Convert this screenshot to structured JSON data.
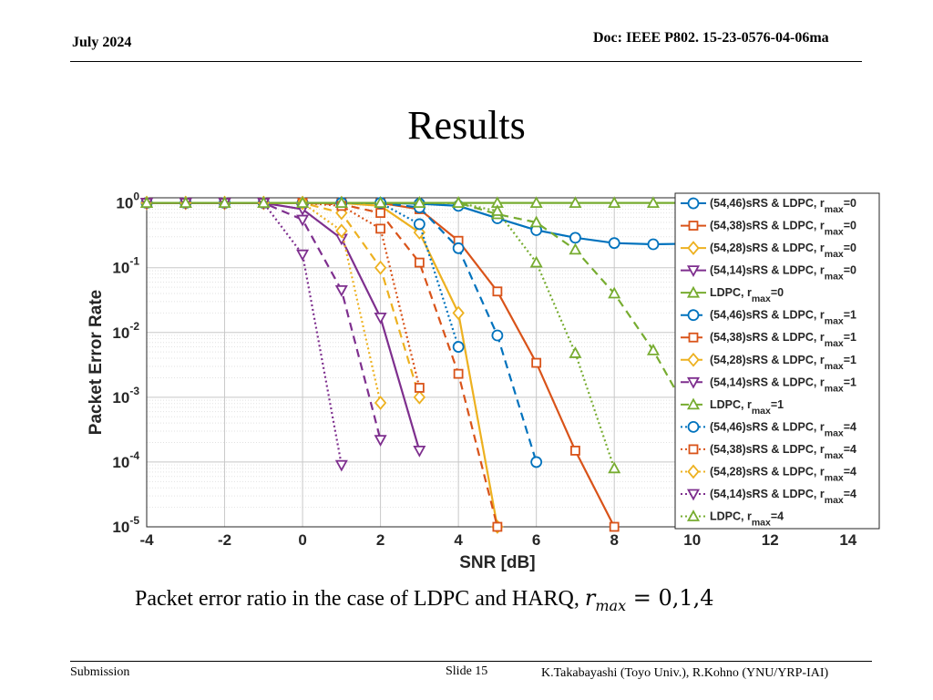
{
  "header": {
    "date": "July 2024",
    "doc": "Doc: IEEE P802. 15-23-0576-04-06ma"
  },
  "slide_title": "Results",
  "caption": {
    "text": "Packet error ratio in the case of LDPC and HARQ, ",
    "math_symbol": "r",
    "math_subscript": "max",
    "math_rest": " = 0,1,4"
  },
  "footer": {
    "submission": "Submission",
    "slide": "Slide 15",
    "authors": "K.Takabayashi (Toyo Univ.), R.Kohno (YNU/YRP-IAI)"
  },
  "chart_data": {
    "type": "line",
    "xlabel": "SNR [dB]",
    "ylabel": "Packet Error Rate",
    "xlim": [
      -4,
      14.8
    ],
    "ylim": [
      1e-05,
      1.2
    ],
    "yscale": "log",
    "grid": true,
    "legend_position": "right",
    "x_ticks": [
      -4,
      -2,
      0,
      2,
      4,
      6,
      8,
      10,
      12,
      14
    ],
    "y_ticks": [
      {
        "base": "10",
        "exp": "0"
      },
      {
        "base": "10",
        "exp": "-1"
      },
      {
        "base": "10",
        "exp": "-2"
      },
      {
        "base": "10",
        "exp": "-3"
      },
      {
        "base": "10",
        "exp": "-4"
      },
      {
        "base": "10",
        "exp": "-5"
      }
    ],
    "series": [
      {
        "name": "(54,46)sRS & LDPC, r",
        "sub": "max",
        "suffix": "=0",
        "color": "#0072BD",
        "dash": "solid",
        "marker": "circle",
        "filled": false,
        "x": [
          -4,
          -3,
          -2,
          -1,
          0,
          1,
          2,
          3,
          4,
          5,
          6,
          7,
          8,
          9,
          10
        ],
        "y": [
          1,
          1,
          1,
          1,
          1,
          1,
          1,
          0.97,
          0.9,
          0.58,
          0.38,
          0.29,
          0.24,
          0.23,
          0.235
        ]
      },
      {
        "name": "(54,38)sRS & LDPC, r",
        "sub": "max",
        "suffix": "=0",
        "color": "#D95319",
        "dash": "solid",
        "marker": "square",
        "filled": false,
        "x": [
          -4,
          -3,
          -2,
          -1,
          0,
          1,
          2,
          3,
          4,
          5,
          6,
          7,
          8
        ],
        "y": [
          1,
          1,
          1,
          1,
          1,
          1,
          1,
          0.8,
          0.26,
          0.043,
          0.0034,
          0.00015,
          1e-05
        ]
      },
      {
        "name": "(54,28)sRS & LDPC, r",
        "sub": "max",
        "suffix": "=0",
        "color": "#EDB120",
        "dash": "solid",
        "marker": "diamond",
        "filled": false,
        "x": [
          -4,
          -3,
          -2,
          -1,
          0,
          1,
          2,
          3,
          4,
          5
        ],
        "y": [
          1,
          1,
          1,
          1,
          1,
          1,
          0.9,
          0.35,
          0.02,
          1e-05
        ]
      },
      {
        "name": "(54,14)sRS & LDPC, r",
        "sub": "max",
        "suffix": "=0",
        "color": "#7E2F8E",
        "dash": "solid",
        "marker": "triangle-down",
        "filled": false,
        "x": [
          -4,
          -3,
          -2,
          -1,
          0,
          1,
          2,
          3
        ],
        "y": [
          1,
          1,
          1,
          1,
          0.8,
          0.28,
          0.017,
          0.00015
        ]
      },
      {
        "name": "LDPC, r",
        "sub": "max",
        "suffix": "=0",
        "color": "#77AC30",
        "dash": "solid",
        "marker": "triangle-up",
        "filled": false,
        "x": [
          -4,
          -3,
          -2,
          -1,
          0,
          1,
          2,
          3,
          4,
          5,
          6,
          7,
          8,
          9,
          10
        ],
        "y": [
          1,
          1,
          1,
          1,
          1,
          1,
          1,
          1,
          1,
          1,
          1,
          1,
          1,
          1,
          1
        ]
      },
      {
        "name": "(54,46)sRS & LDPC, r",
        "sub": "max",
        "suffix": "=1",
        "color": "#0072BD",
        "dash": "dashed",
        "marker": "circle",
        "filled": false,
        "x": [
          -4,
          -3,
          -2,
          -1,
          0,
          1,
          2,
          3,
          4,
          5,
          6
        ],
        "y": [
          1,
          1,
          1,
          1,
          1,
          1,
          1,
          0.85,
          0.2,
          0.009,
          0.0001
        ]
      },
      {
        "name": "(54,38)sRS & LDPC, r",
        "sub": "max",
        "suffix": "=1",
        "color": "#D95319",
        "dash": "dashed",
        "marker": "square",
        "filled": false,
        "x": [
          -4,
          -3,
          -2,
          -1,
          0,
          1,
          2,
          3,
          4,
          5
        ],
        "y": [
          1,
          1,
          1,
          1,
          1,
          0.95,
          0.7,
          0.12,
          0.0023,
          1e-05
        ]
      },
      {
        "name": "(54,28)sRS & LDPC, r",
        "sub": "max",
        "suffix": "=1",
        "color": "#EDB120",
        "dash": "dashed",
        "marker": "diamond",
        "filled": false,
        "x": [
          -4,
          -3,
          -2,
          -1,
          0,
          1,
          2,
          3
        ],
        "y": [
          1,
          1,
          1,
          1,
          1,
          0.7,
          0.1,
          0.001
        ]
      },
      {
        "name": "(54,14)sRS & LDPC, r",
        "sub": "max",
        "suffix": "=1",
        "color": "#7E2F8E",
        "dash": "dashed",
        "marker": "triangle-down",
        "filled": false,
        "x": [
          -4,
          -3,
          -2,
          -1,
          0,
          1,
          2
        ],
        "y": [
          1,
          1,
          1,
          1,
          0.55,
          0.045,
          0.00022
        ]
      },
      {
        "name": "LDPC, r",
        "sub": "max",
        "suffix": "=1",
        "color": "#77AC30",
        "dash": "dashed",
        "marker": "triangle-up",
        "filled": false,
        "x": [
          -4,
          -3,
          -2,
          -1,
          0,
          1,
          2,
          3,
          4,
          5,
          6,
          7,
          8,
          9,
          10
        ],
        "y": [
          1,
          1,
          1,
          1,
          1,
          1,
          1,
          1,
          1,
          0.67,
          0.5,
          0.19,
          0.04,
          0.0053,
          0.00045
        ]
      },
      {
        "name": "(54,46)sRS & LDPC, r",
        "sub": "max",
        "suffix": "=4",
        "color": "#0072BD",
        "dash": "dotted",
        "marker": "circle",
        "filled": false,
        "x": [
          -4,
          -3,
          -2,
          -1,
          0,
          1,
          2,
          3,
          4
        ],
        "y": [
          1,
          1,
          1,
          1,
          1,
          1,
          1,
          0.47,
          0.006
        ]
      },
      {
        "name": "(54,38)sRS & LDPC, r",
        "sub": "max",
        "suffix": "=4",
        "color": "#D95319",
        "dash": "dotted",
        "marker": "square",
        "filled": false,
        "x": [
          -4,
          -3,
          -2,
          -1,
          0,
          1,
          2,
          3
        ],
        "y": [
          1,
          1,
          1,
          1,
          1,
          0.9,
          0.4,
          0.0014
        ]
      },
      {
        "name": "(54,28)sRS & LDPC, r",
        "sub": "max",
        "suffix": "=4",
        "color": "#EDB120",
        "dash": "dotted",
        "marker": "diamond",
        "filled": false,
        "x": [
          -4,
          -3,
          -2,
          -1,
          0,
          1,
          2
        ],
        "y": [
          1,
          1,
          1,
          1,
          1,
          0.37,
          0.00082
        ]
      },
      {
        "name": "(54,14)sRS & LDPC, r",
        "sub": "max",
        "suffix": "=4",
        "color": "#7E2F8E",
        "dash": "dotted",
        "marker": "triangle-down",
        "filled": false,
        "x": [
          -4,
          -3,
          -2,
          -1,
          0,
          1
        ],
        "y": [
          1,
          1,
          1,
          1,
          0.16,
          9e-05
        ]
      },
      {
        "name": "LDPC, r",
        "sub": "max",
        "suffix": "=4",
        "color": "#77AC30",
        "dash": "dotted",
        "marker": "triangle-up",
        "filled": false,
        "x": [
          -4,
          -3,
          -2,
          -1,
          0,
          1,
          2,
          3,
          4,
          5,
          6,
          7,
          8
        ],
        "y": [
          1,
          1,
          1,
          1,
          1,
          1,
          1,
          1,
          1,
          0.75,
          0.12,
          0.0048,
          8e-05
        ]
      }
    ]
  }
}
